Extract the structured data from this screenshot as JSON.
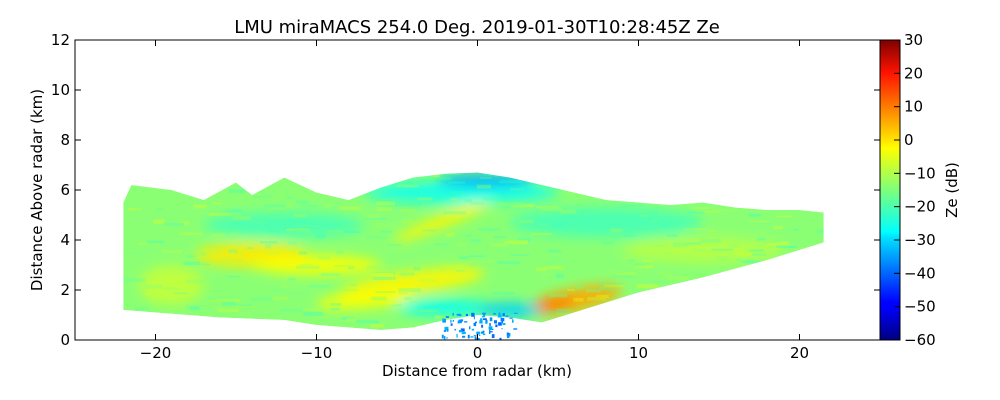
{
  "chart_data": {
    "type": "heatmap",
    "title": "LMU miraMACS 254.0 Deg. 2019-01-30T10:28:45Z  Ze",
    "xlabel": "Distance from radar (km)",
    "ylabel": "Distance Above radar  (km)",
    "xlim": [
      -25,
      25
    ],
    "ylim": [
      0,
      12
    ],
    "xticks": [
      -20,
      -10,
      0,
      10,
      20
    ],
    "xtick_labels": [
      "−20",
      "−10",
      "0",
      "10",
      "20"
    ],
    "yticks": [
      0,
      2,
      4,
      6,
      8,
      10,
      12
    ],
    "ytick_labels": [
      "0",
      "2",
      "4",
      "6",
      "8",
      "10",
      "12"
    ],
    "colorbar": {
      "label": "Ze (dB)",
      "range": [
        -60,
        30
      ],
      "ticks": [
        -60,
        -50,
        -40,
        -30,
        -20,
        -10,
        0,
        10,
        20,
        30
      ],
      "tick_labels": [
        "−60",
        "−50",
        "−40",
        "−30",
        "−20",
        "−10",
        "0",
        "10",
        "20",
        "30"
      ],
      "colormap": "jet"
    },
    "echo": {
      "top_boundary": [
        [
          -22,
          5.5
        ],
        [
          -21.5,
          6.2
        ],
        [
          -19,
          6.0
        ],
        [
          -17,
          5.6
        ],
        [
          -15,
          6.3
        ],
        [
          -14,
          5.8
        ],
        [
          -12,
          6.5
        ],
        [
          -10,
          5.9
        ],
        [
          -8,
          5.6
        ],
        [
          -6,
          6.1
        ],
        [
          -4,
          6.5
        ],
        [
          -2,
          6.65
        ],
        [
          0,
          6.7
        ],
        [
          2,
          6.5
        ],
        [
          4,
          6.2
        ],
        [
          6,
          5.9
        ],
        [
          8,
          5.6
        ],
        [
          10,
          5.5
        ],
        [
          12,
          5.4
        ],
        [
          14,
          5.5
        ],
        [
          16,
          5.3
        ],
        [
          18,
          5.2
        ],
        [
          20,
          5.2
        ],
        [
          21.5,
          5.1
        ]
      ],
      "bottom_boundary": [
        [
          -22,
          1.2
        ],
        [
          -20,
          1.1
        ],
        [
          -18,
          1.0
        ],
        [
          -16,
          0.9
        ],
        [
          -14,
          0.85
        ],
        [
          -12,
          0.8
        ],
        [
          -10,
          0.6
        ],
        [
          -8,
          0.5
        ],
        [
          -6,
          0.4
        ],
        [
          -4,
          0.5
        ],
        [
          -2,
          0.8
        ],
        [
          0,
          1.0
        ],
        [
          2,
          0.9
        ],
        [
          4,
          0.7
        ],
        [
          6,
          1.1
        ],
        [
          10,
          1.9
        ],
        [
          14,
          2.5
        ],
        [
          18,
          3.2
        ],
        [
          21.5,
          3.9
        ]
      ],
      "background_dbz": -14,
      "features": [
        {
          "x": -14,
          "y": 3.4,
          "rx": 3.5,
          "ry": 0.5,
          "rot": 0,
          "dbz": -2
        },
        {
          "x": -10,
          "y": 3.0,
          "rx": 4,
          "ry": 0.4,
          "rot": 0,
          "dbz": -4
        },
        {
          "x": -4,
          "y": 2.3,
          "rx": 4.5,
          "ry": 0.45,
          "rot": 8,
          "dbz": -3
        },
        {
          "x": -7,
          "y": 1.6,
          "rx": 3,
          "ry": 0.35,
          "rot": 5,
          "dbz": -4
        },
        {
          "x": 6,
          "y": 1.6,
          "rx": 3,
          "ry": 0.45,
          "rot": 12,
          "dbz": 4
        },
        {
          "x": 4.5,
          "y": 1.4,
          "rx": 1.5,
          "ry": 0.25,
          "rot": 10,
          "dbz": 8
        },
        {
          "x": -2,
          "y": 4.8,
          "rx": 3.5,
          "ry": 0.25,
          "rot": 22,
          "dbz": -3
        },
        {
          "x": -12,
          "y": 4.6,
          "rx": 5,
          "ry": 0.5,
          "rot": 0,
          "dbz": -20
        },
        {
          "x": 8,
          "y": 4.7,
          "rx": 6,
          "ry": 0.6,
          "rot": 0,
          "dbz": -20
        },
        {
          "x": -1,
          "y": 5.9,
          "rx": 6,
          "ry": 0.45,
          "rot": 0,
          "dbz": -25
        },
        {
          "x": 0.5,
          "y": 6.4,
          "rx": 3,
          "ry": 0.25,
          "rot": 0,
          "dbz": -34
        },
        {
          "x": -2,
          "y": 1.3,
          "rx": 3,
          "ry": 0.3,
          "rot": 0,
          "dbz": -26
        },
        {
          "x": 2,
          "y": 1.2,
          "rx": 2,
          "ry": 0.3,
          "rot": 0,
          "dbz": -30
        },
        {
          "x": 14,
          "y": 3.6,
          "rx": 5,
          "ry": 0.5,
          "rot": 0,
          "dbz": -10
        },
        {
          "x": -19,
          "y": 2.2,
          "rx": 2,
          "ry": 0.8,
          "rot": 0,
          "dbz": -9
        }
      ],
      "speckle_dbz": [
        -40,
        -32
      ]
    }
  }
}
